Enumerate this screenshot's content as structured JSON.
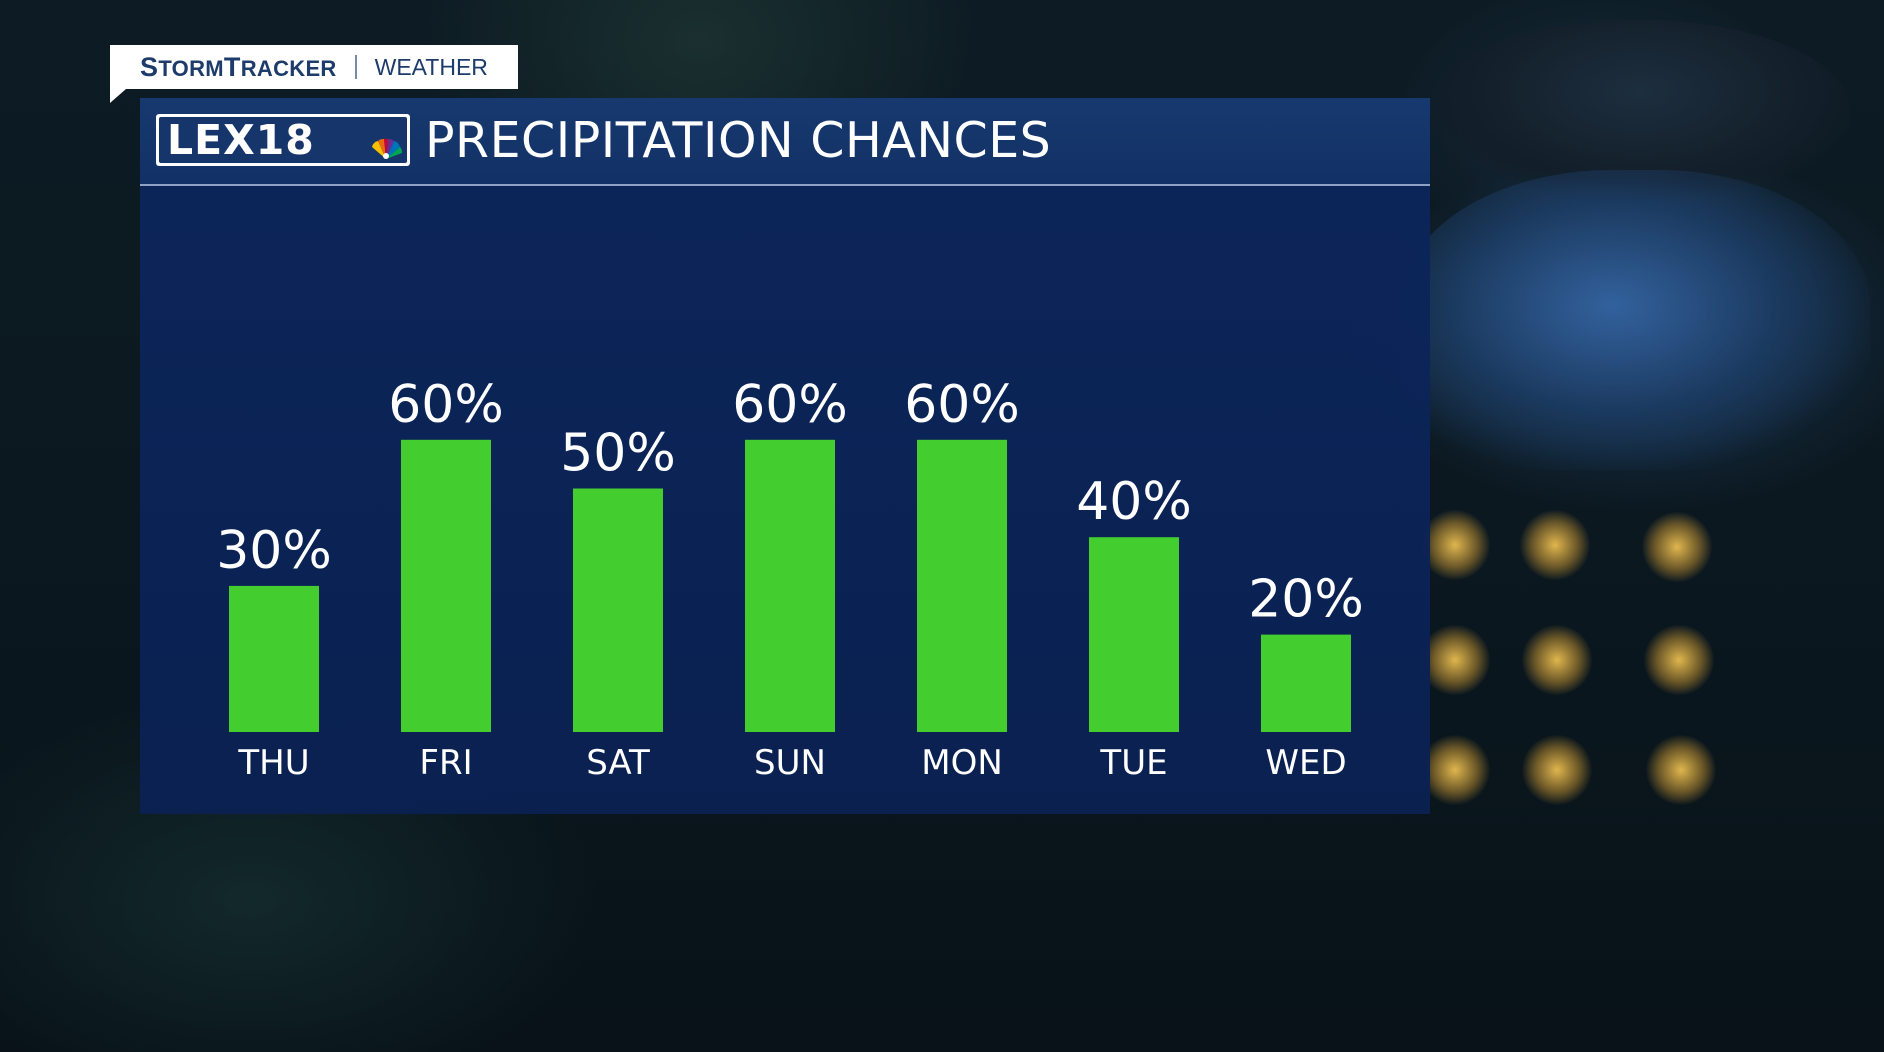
{
  "brand": {
    "tag_name_first": "S",
    "tag_name_rest": "TORM",
    "tag_name_first2": "T",
    "tag_name_rest2": "RACKER",
    "tag_sub": "WEATHER"
  },
  "logo": {
    "text": "LEX18",
    "network_icon": "nbc-peacock-icon"
  },
  "colors": {
    "bar": "#43cd2f",
    "panel": "#0b2454",
    "header": "#15346b",
    "text": "#ffffff"
  },
  "chart_data": {
    "type": "bar",
    "title": "PRECIPITATION CHANCES",
    "categories": [
      "THU",
      "FRI",
      "SAT",
      "SUN",
      "MON",
      "TUE",
      "WED"
    ],
    "values": [
      30,
      60,
      50,
      60,
      60,
      40,
      20
    ],
    "value_labels": [
      "30%",
      "60%",
      "50%",
      "60%",
      "60%",
      "40%",
      "20%"
    ],
    "unit": "%",
    "ylim": [
      0,
      60
    ],
    "grid": false,
    "legend": "none"
  }
}
